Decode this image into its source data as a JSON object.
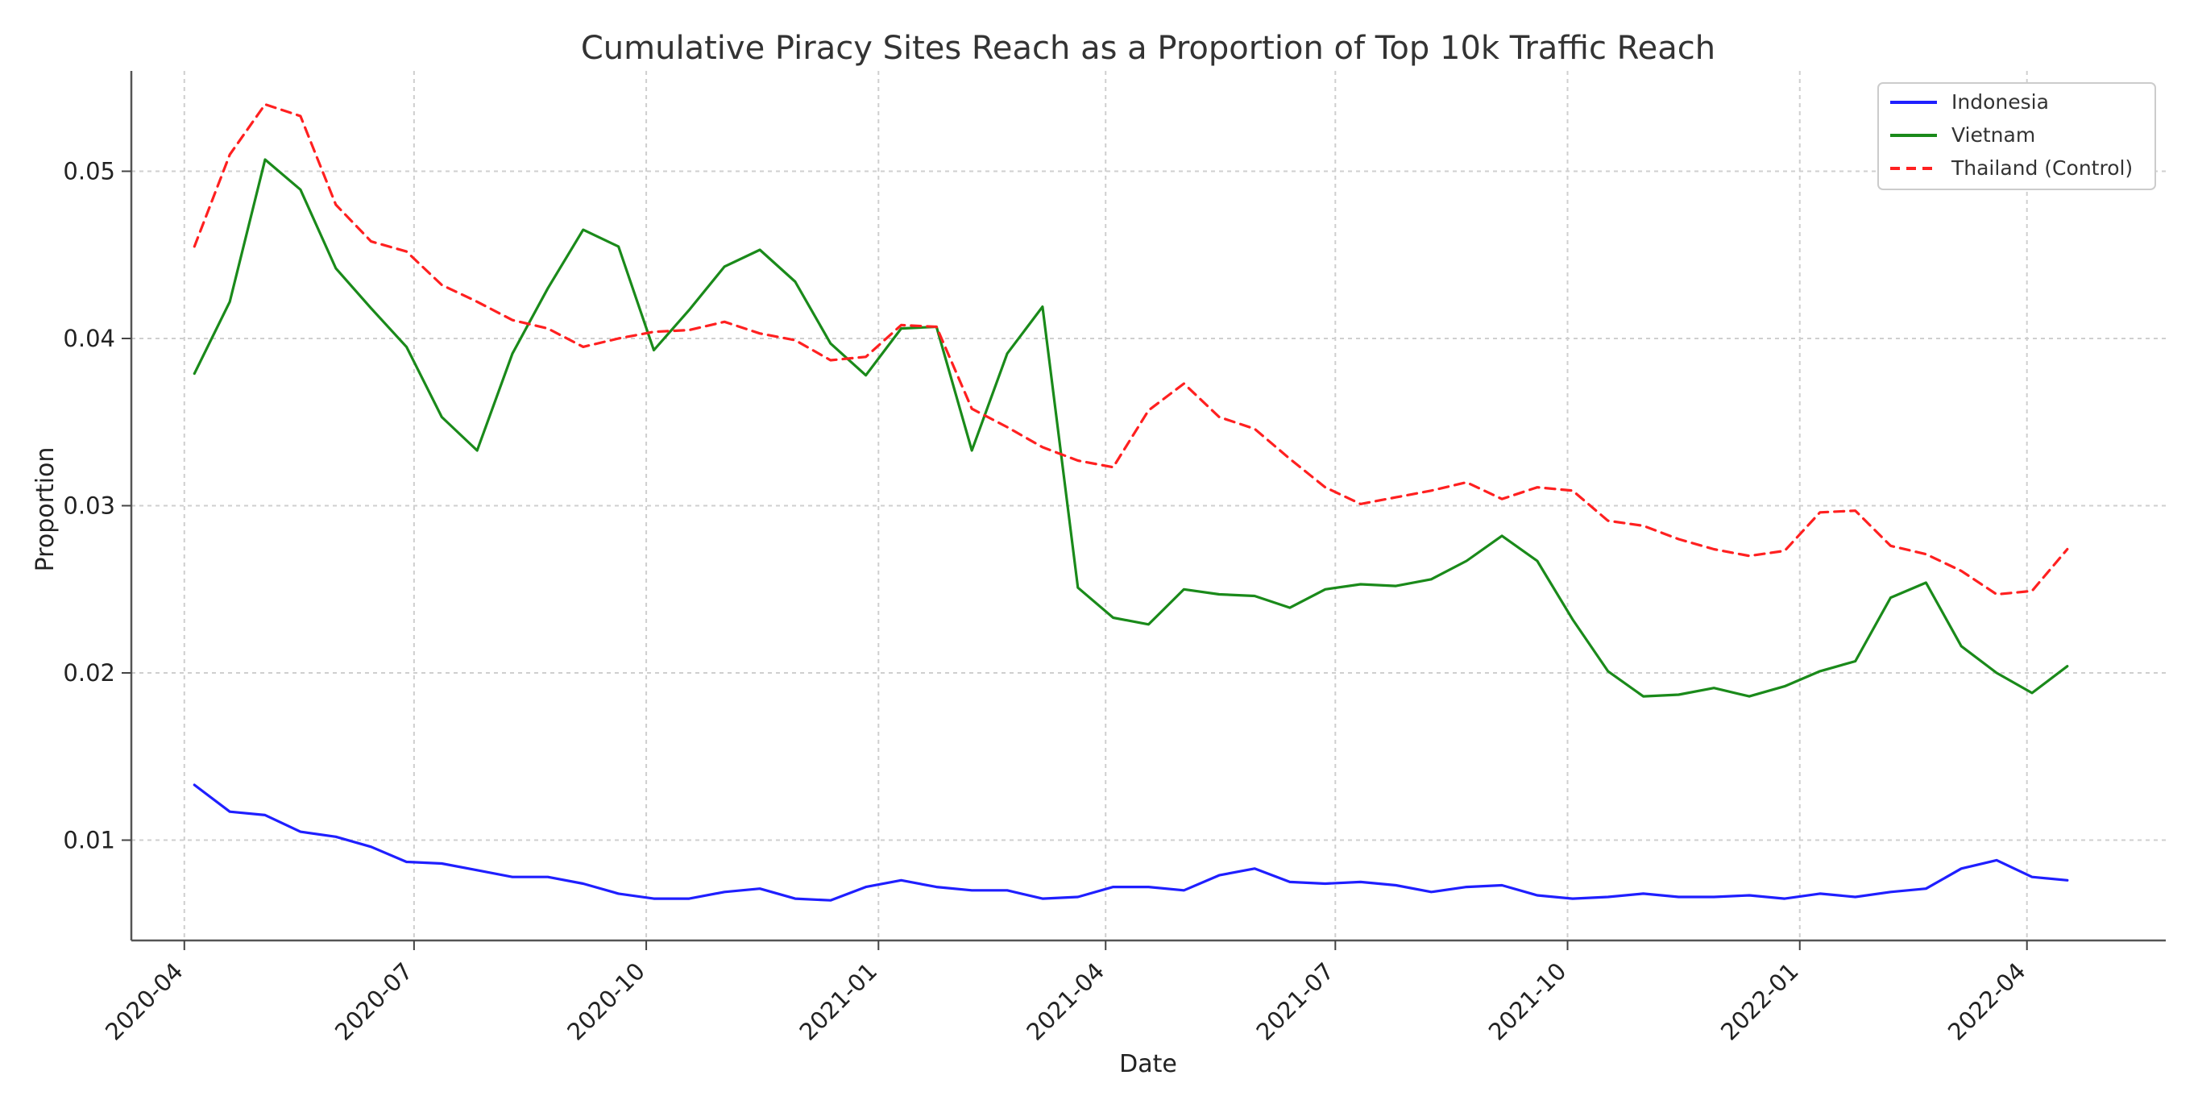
{
  "chart_data": {
    "type": "line",
    "title": "Cumulative Piracy Sites Reach as a Proportion of Top 10k Traffic Reach",
    "xlabel": "Date",
    "ylabel": "Proportion",
    "x_ticks": [
      "2020-04",
      "2020-07",
      "2020-10",
      "2021-01",
      "2021-04",
      "2021-07",
      "2021-10",
      "2022-01",
      "2022-04"
    ],
    "y_ticks": [
      "0.01",
      "0.02",
      "0.03",
      "0.04",
      "0.05"
    ],
    "ylim": [
      0.004,
      0.056
    ],
    "xlim": [
      "2020-03-11",
      "2022-05-26"
    ],
    "grid": true,
    "legend_position": "top-right",
    "x": [
      "2020-04-05",
      "2020-04-19",
      "2020-05-03",
      "2020-05-17",
      "2020-05-31",
      "2020-06-14",
      "2020-06-28",
      "2020-07-12",
      "2020-07-26",
      "2020-08-09",
      "2020-08-23",
      "2020-09-06",
      "2020-09-20",
      "2020-10-04",
      "2020-10-18",
      "2020-11-01",
      "2020-11-15",
      "2020-11-29",
      "2020-12-13",
      "2020-12-27",
      "2021-01-10",
      "2021-01-24",
      "2021-02-07",
      "2021-02-21",
      "2021-03-07",
      "2021-03-21",
      "2021-04-04",
      "2021-04-18",
      "2021-05-02",
      "2021-05-16",
      "2021-05-30",
      "2021-06-13",
      "2021-06-27",
      "2021-07-11",
      "2021-07-25",
      "2021-08-08",
      "2021-08-22",
      "2021-09-05",
      "2021-09-19",
      "2021-10-03",
      "2021-10-17",
      "2021-10-31",
      "2021-11-14",
      "2021-11-28",
      "2021-12-12",
      "2021-12-26",
      "2022-01-09",
      "2022-01-23",
      "2022-02-06",
      "2022-02-20",
      "2022-03-06",
      "2022-03-20",
      "2022-04-03",
      "2022-04-17"
    ],
    "series": [
      {
        "name": "Indonesia",
        "color": "#1f1fff",
        "style": "solid",
        "values": [
          0.0133,
          0.0117,
          0.0115,
          0.0105,
          0.0102,
          0.0096,
          0.0087,
          0.0086,
          0.0082,
          0.0078,
          0.0078,
          0.0074,
          0.0068,
          0.0065,
          0.0065,
          0.0069,
          0.0071,
          0.0065,
          0.0064,
          0.0072,
          0.0076,
          0.0072,
          0.007,
          0.007,
          0.0065,
          0.0066,
          0.0072,
          0.0072,
          0.007,
          0.0079,
          0.0083,
          0.0075,
          0.0074,
          0.0075,
          0.0073,
          0.0069,
          0.0072,
          0.0073,
          0.0067,
          0.0065,
          0.0066,
          0.0068,
          0.0066,
          0.0066,
          0.0067,
          0.0065,
          0.0068,
          0.0066,
          0.0069,
          0.0071,
          0.0083,
          0.0088,
          0.0078,
          0.0076
        ]
      },
      {
        "name": "Vietnam",
        "color": "#1a8a1a",
        "style": "solid",
        "values": [
          0.0379,
          0.0422,
          0.0507,
          0.0489,
          0.0442,
          0.0418,
          0.0395,
          0.0353,
          0.0333,
          0.0391,
          0.043,
          0.0465,
          0.0455,
          0.0393,
          0.0417,
          0.0443,
          0.0453,
          0.0434,
          0.0397,
          0.0378,
          0.0406,
          0.0407,
          0.0333,
          0.0391,
          0.0419,
          0.0251,
          0.0233,
          0.0229,
          0.025,
          0.0247,
          0.0246,
          0.0239,
          0.025,
          0.0253,
          0.0252,
          0.0256,
          0.0267,
          0.0282,
          0.0267,
          0.0232,
          0.0201,
          0.0186,
          0.0187,
          0.0191,
          0.0186,
          0.0192,
          0.0201,
          0.0207,
          0.0245,
          0.0254,
          0.0216,
          0.02,
          0.0188,
          0.0204
        ]
      },
      {
        "name": "Thailand (Control)",
        "color": "#ff2020",
        "style": "dashed",
        "values": [
          0.0455,
          0.051,
          0.054,
          0.0533,
          0.048,
          0.0458,
          0.0452,
          0.0432,
          0.0422,
          0.0411,
          0.0406,
          0.0395,
          0.04,
          0.0404,
          0.0405,
          0.041,
          0.0403,
          0.0399,
          0.0387,
          0.0389,
          0.0408,
          0.0407,
          0.0358,
          0.0347,
          0.0335,
          0.0327,
          0.0323,
          0.0357,
          0.0373,
          0.0353,
          0.0346,
          0.0328,
          0.0311,
          0.0301,
          0.0305,
          0.0309,
          0.0314,
          0.0304,
          0.0311,
          0.0309,
          0.0291,
          0.0288,
          0.028,
          0.0274,
          0.027,
          0.0273,
          0.0296,
          0.0297,
          0.0276,
          0.0271,
          0.0261,
          0.0247,
          0.0249,
          0.0274
        ]
      }
    ]
  }
}
